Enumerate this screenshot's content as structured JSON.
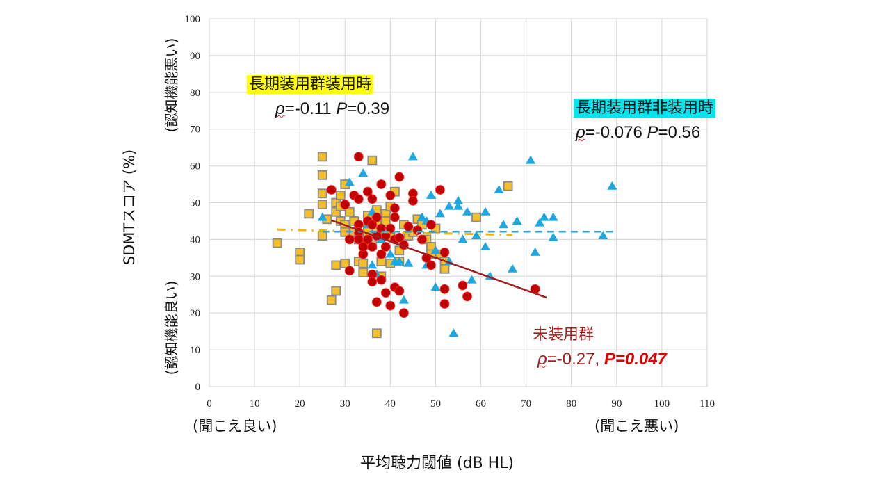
{
  "chart_data": {
    "type": "scatter",
    "title": "",
    "xlabel": "平均聴力閾値 (dB HL)",
    "ylabel": "SDMTスコア (%)",
    "xlim": [
      0,
      110
    ],
    "ylim": [
      0,
      100
    ],
    "x_ticks": [
      0,
      10,
      20,
      30,
      40,
      50,
      60,
      70,
      80,
      90,
      100,
      110
    ],
    "y_ticks": [
      0,
      10,
      20,
      30,
      40,
      50,
      60,
      70,
      80,
      90,
      100
    ],
    "grid": true,
    "x_left_note": "(聞こえ良い)",
    "x_right_note": "(聞こえ悪い)",
    "y_top_note": "(認知機能悪い)",
    "y_bottom_note": "(認知機能良い)",
    "colors": {
      "worn": "#f5bf2a",
      "worn_border": "#8a8a8a",
      "not_worn": "#1ea7e1",
      "non_user": "#c00000",
      "non_user_trend": "#a31e1e",
      "worn_trend": "#f0b400",
      "not_worn_trend": "#2ea2d6"
    },
    "series": [
      {
        "name": "長期装用群装用時",
        "marker": "square",
        "points": [
          [
            15,
            39
          ],
          [
            20,
            36.5
          ],
          [
            20,
            34.5
          ],
          [
            22,
            47
          ],
          [
            25,
            62.5
          ],
          [
            25,
            57.5
          ],
          [
            25,
            52.5
          ],
          [
            25,
            49.5
          ],
          [
            25,
            41
          ],
          [
            26,
            45.5
          ],
          [
            27,
            23.5
          ],
          [
            28,
            50
          ],
          [
            28,
            47.5
          ],
          [
            28,
            33
          ],
          [
            28,
            26
          ],
          [
            29,
            52
          ],
          [
            29,
            49
          ],
          [
            29,
            45
          ],
          [
            30,
            55
          ],
          [
            30,
            44
          ],
          [
            30,
            42
          ],
          [
            30,
            33.5
          ],
          [
            31,
            47.5
          ],
          [
            32,
            45
          ],
          [
            32,
            42
          ],
          [
            33,
            40
          ],
          [
            33,
            34
          ],
          [
            34,
            33.5
          ],
          [
            34,
            31
          ],
          [
            35,
            46.5
          ],
          [
            35,
            43
          ],
          [
            35,
            41
          ],
          [
            36,
            61.5
          ],
          [
            36,
            38.5
          ],
          [
            37,
            48
          ],
          [
            37,
            44
          ],
          [
            37,
            42
          ],
          [
            37,
            14.5
          ],
          [
            38,
            34
          ],
          [
            38,
            30
          ],
          [
            39,
            47
          ],
          [
            39,
            45
          ],
          [
            40,
            49
          ],
          [
            40,
            41
          ],
          [
            40,
            33.5
          ],
          [
            41,
            53
          ],
          [
            42,
            37
          ],
          [
            42,
            34
          ],
          [
            43,
            44
          ],
          [
            44,
            41
          ],
          [
            45,
            42
          ],
          [
            46,
            45.5
          ],
          [
            47,
            44
          ],
          [
            48,
            40
          ],
          [
            49,
            38
          ],
          [
            49,
            36
          ],
          [
            50,
            43
          ],
          [
            51,
            36
          ],
          [
            52,
            34
          ],
          [
            52,
            32
          ],
          [
            59,
            46
          ],
          [
            66,
            54.5
          ]
        ]
      },
      {
        "name": "長期装用群非装用時",
        "marker": "triangle",
        "points": [
          [
            25,
            46
          ],
          [
            31,
            55.5
          ],
          [
            33,
            41
          ],
          [
            34,
            58
          ],
          [
            35,
            44
          ],
          [
            36,
            47.5
          ],
          [
            36,
            33
          ],
          [
            37,
            30.5
          ],
          [
            38,
            43
          ],
          [
            38,
            40
          ],
          [
            40,
            42.5
          ],
          [
            40,
            36
          ],
          [
            41,
            34
          ],
          [
            42,
            34
          ],
          [
            43,
            23.5
          ],
          [
            44,
            33.5
          ],
          [
            45,
            62.5
          ],
          [
            47,
            46
          ],
          [
            48,
            45
          ],
          [
            48,
            33
          ],
          [
            49,
            52
          ],
          [
            50,
            27
          ],
          [
            50,
            37
          ],
          [
            51,
            47
          ],
          [
            53,
            49
          ],
          [
            53,
            34
          ],
          [
            54,
            14.5
          ],
          [
            55,
            49
          ],
          [
            55,
            50.5
          ],
          [
            56,
            40
          ],
          [
            57,
            47.5
          ],
          [
            58,
            29
          ],
          [
            59,
            41
          ],
          [
            61,
            47.5
          ],
          [
            61,
            38
          ],
          [
            62,
            30
          ],
          [
            64,
            53.5
          ],
          [
            65,
            44
          ],
          [
            67,
            32
          ],
          [
            68,
            45
          ],
          [
            71,
            61.5
          ],
          [
            72,
            36.5
          ],
          [
            73,
            44.5
          ],
          [
            74,
            46
          ],
          [
            76,
            46
          ],
          [
            76,
            40.5
          ],
          [
            87,
            41
          ],
          [
            89,
            54.5
          ]
        ]
      },
      {
        "name": "未装用群",
        "marker": "circle",
        "points": [
          [
            27,
            53.5
          ],
          [
            30,
            49.5
          ],
          [
            31,
            40
          ],
          [
            31,
            31.5
          ],
          [
            32,
            52
          ],
          [
            33,
            62.5
          ],
          [
            33,
            51
          ],
          [
            33,
            44
          ],
          [
            33,
            42
          ],
          [
            34,
            39
          ],
          [
            34,
            36
          ],
          [
            35,
            53
          ],
          [
            35,
            45
          ],
          [
            35,
            40
          ],
          [
            36,
            51
          ],
          [
            36,
            44
          ],
          [
            36,
            38
          ],
          [
            36,
            30.5
          ],
          [
            36,
            28.5
          ],
          [
            37,
            46
          ],
          [
            37,
            41
          ],
          [
            37,
            23
          ],
          [
            38,
            55
          ],
          [
            38,
            43
          ],
          [
            38,
            36
          ],
          [
            38,
            29
          ],
          [
            39,
            38
          ],
          [
            39,
            25.5
          ],
          [
            40,
            52
          ],
          [
            40,
            43
          ],
          [
            40,
            22
          ],
          [
            41,
            48.5
          ],
          [
            41,
            46
          ],
          [
            41,
            40
          ],
          [
            41,
            27
          ],
          [
            42,
            57
          ],
          [
            42,
            40.5
          ],
          [
            42,
            26
          ],
          [
            43,
            20
          ],
          [
            44,
            43.5
          ],
          [
            45,
            52.5
          ],
          [
            45,
            50.5
          ],
          [
            46,
            42.5
          ],
          [
            47,
            40
          ],
          [
            48,
            35
          ],
          [
            49,
            33
          ],
          [
            49,
            44
          ],
          [
            51,
            53.5
          ],
          [
            52,
            36.5
          ],
          [
            52,
            26.5
          ],
          [
            52,
            22.5
          ],
          [
            56,
            27.5
          ],
          [
            57,
            24.5
          ],
          [
            72,
            26.5
          ],
          [
            33,
            40
          ],
          [
            34,
            38
          ],
          [
            39,
            41
          ],
          [
            43,
            38.5
          ]
        ]
      }
    ],
    "trend_lines": [
      {
        "name": "長期装用群装用時",
        "style": "dash-dot",
        "from": [
          15,
          42.7
        ],
        "to": [
          67,
          41.2
        ]
      },
      {
        "name": "長期装用群非装用時",
        "style": "dashed",
        "from": [
          25,
          42.1
        ],
        "to": [
          90,
          42.1
        ]
      },
      {
        "name": "未装用群",
        "style": "solid",
        "from": [
          27,
          45.2
        ],
        "to": [
          74.5,
          24.2
        ]
      }
    ],
    "annotations": [
      {
        "group": "長期装用群装用時",
        "rho_label": "ρ",
        "rho": "=-0.11 ",
        "p_label": "P",
        "p": "=0.39"
      },
      {
        "group": "長期装用群",
        "group_bold": "非",
        "group_tail": "装用時",
        "rho_label": "ρ",
        "rho": "=-0.076 ",
        "p_label": "P",
        "p": "=0.56"
      },
      {
        "group": "未装用群",
        "rho_label": "ρ",
        "rho": "=-0.27, ",
        "p_label": "P",
        "p": "=0.047"
      }
    ]
  }
}
